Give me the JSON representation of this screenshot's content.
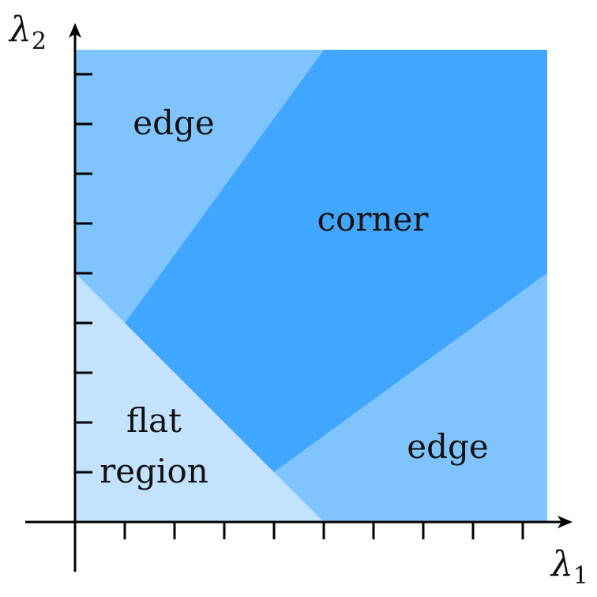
{
  "colors": {
    "flat": "#c2e2ff",
    "edge": "#80c4ff",
    "corner": "#40a6ff",
    "axis": "#000000",
    "text": "#111111"
  },
  "regions": {
    "edge_top": "edge",
    "corner": "corner",
    "flat": [
      "flat",
      "region"
    ],
    "edge_bottom": "edge"
  },
  "axes": {
    "x": {
      "symbol": "λ",
      "subscript": "1"
    },
    "y": {
      "symbol": "λ",
      "subscript": "2"
    }
  },
  "ticks": {
    "x_count": 9,
    "y_count": 9
  }
}
